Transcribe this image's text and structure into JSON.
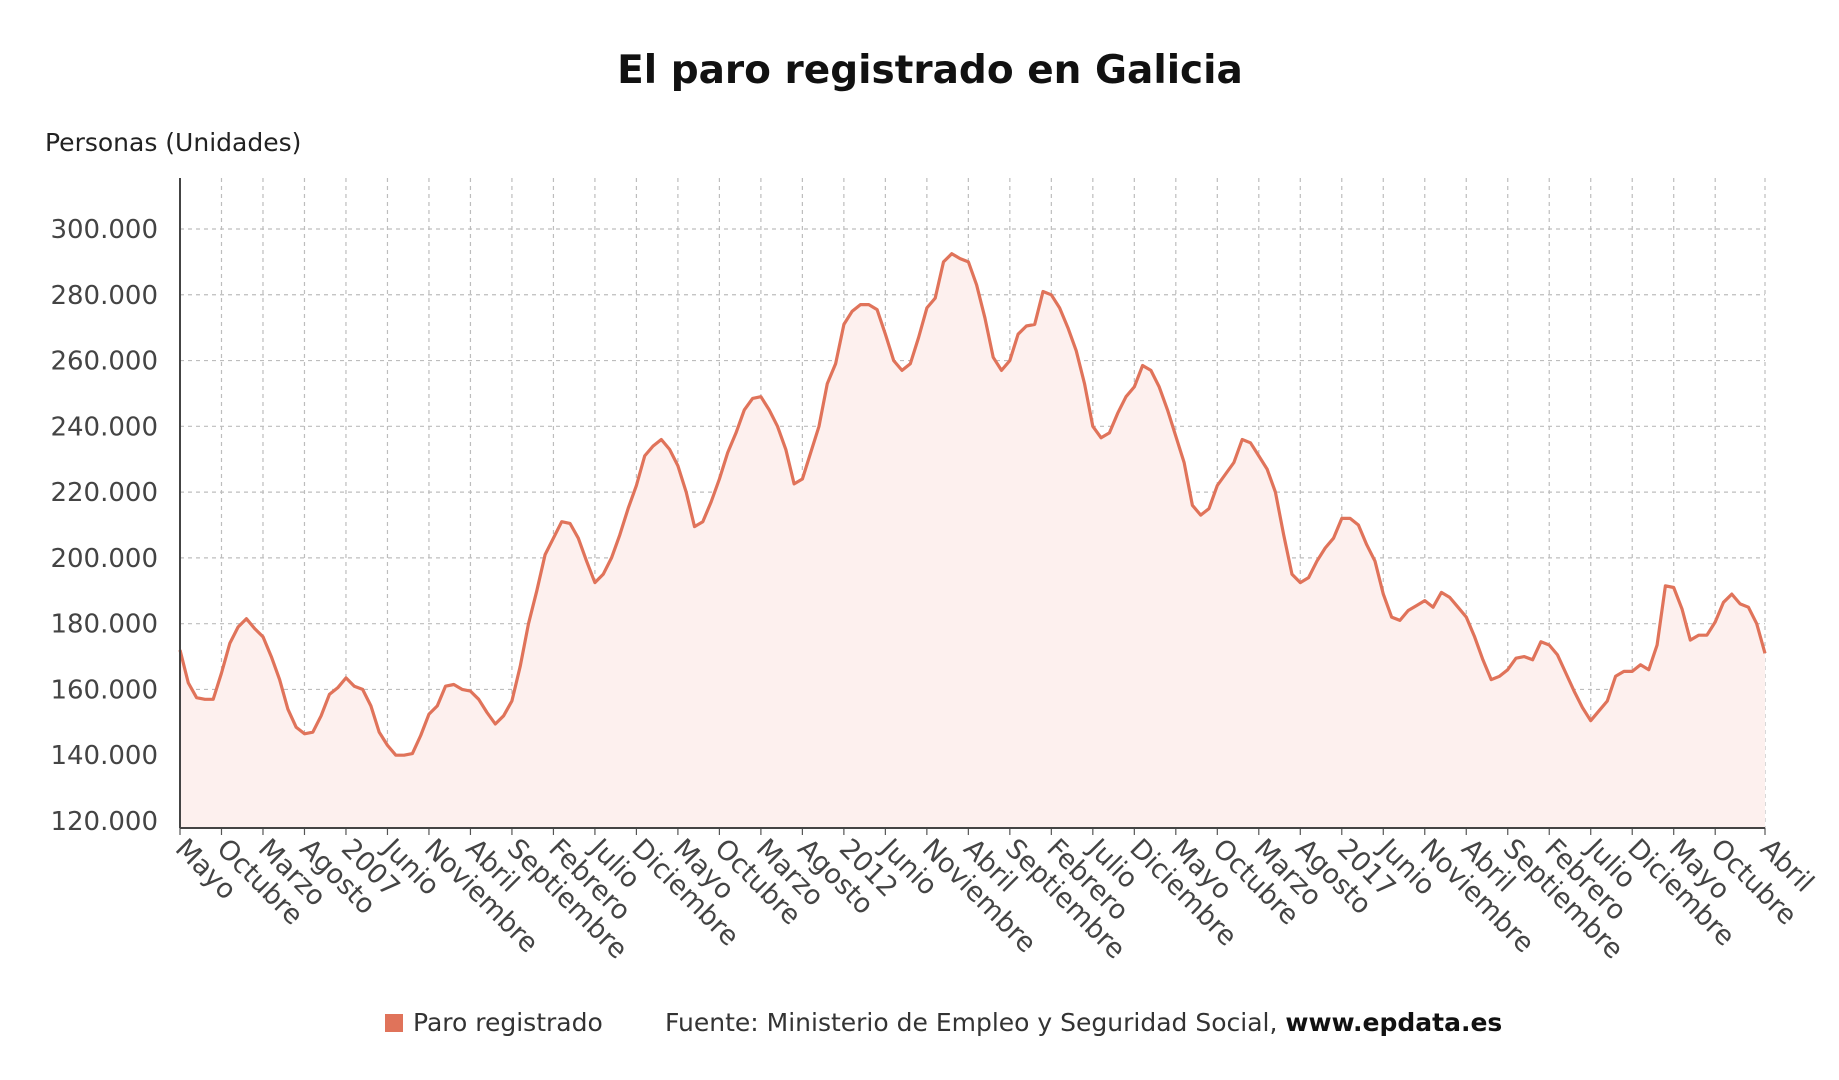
{
  "chart_data": {
    "type": "area",
    "title": "El paro registrado en Galicia",
    "ylabel": "Personas (Unidades)",
    "ylim": [
      120000,
      315000
    ],
    "yticks": [
      120000,
      140000,
      160000,
      180000,
      200000,
      220000,
      240000,
      260000,
      280000,
      300000
    ],
    "ytick_labels": [
      "120.000",
      "140.000",
      "160.000",
      "180.000",
      "200.000",
      "220.000",
      "240.000",
      "260.000",
      "280.000",
      "300.000"
    ],
    "x_start": "2005-05",
    "x_end": "2021-04",
    "x_tick_labels": [
      "Mayo",
      "Octubre",
      "Marzo",
      "Agosto",
      "2007",
      "Junio",
      "Noviembre",
      "Abril",
      "Septiembre",
      "Febrero",
      "Julio",
      "Diciembre",
      "Mayo",
      "Octubre",
      "Marzo",
      "Agosto",
      "2012",
      "Junio",
      "Noviembre",
      "Abril",
      "Septiembre",
      "Febrero",
      "Julio",
      "Diciembre",
      "Mayo",
      "Octubre",
      "Marzo",
      "Agosto",
      "2017",
      "Junio",
      "Noviembre",
      "Abril",
      "Septiembre",
      "Febrero",
      "Julio",
      "Diciembre",
      "Mayo",
      "Octubre",
      "Abril"
    ],
    "grid": true,
    "legend_position": "bottom",
    "series": [
      {
        "name": "Paro registrado",
        "color": "#e0735a",
        "fill": "#fdf0ee",
        "values": [
          172000,
          162000,
          157500,
          157000,
          157000,
          165000,
          174000,
          179000,
          181500,
          178500,
          176000,
          170000,
          163000,
          154000,
          148500,
          146500,
          147000,
          152000,
          158500,
          160500,
          163500,
          161000,
          160000,
          155000,
          147000,
          143000,
          140000,
          140000,
          140500,
          146000,
          152500,
          155000,
          161000,
          161500,
          160000,
          159500,
          157000,
          153000,
          149500,
          152000,
          156500,
          167000,
          180000,
          190000,
          201000,
          206000,
          211000,
          210500,
          206000,
          199000,
          192500,
          195000,
          200000,
          207000,
          215000,
          222000,
          231000,
          234000,
          236000,
          233000,
          228000,
          220000,
          209500,
          211000,
          217000,
          224000,
          232000,
          238000,
          245000,
          248500,
          249000,
          245000,
          240000,
          233000,
          222500,
          224000,
          232000,
          240000,
          253000,
          259000,
          271000,
          275000,
          277000,
          277000,
          275500,
          268000,
          260000,
          257000,
          259000,
          267000,
          276000,
          279000,
          290000,
          292500,
          291000,
          290000,
          283000,
          273000,
          261000,
          257000,
          260000,
          268000,
          270500,
          271000,
          281000,
          280000,
          276000,
          270000,
          263000,
          253000,
          240000,
          236500,
          238000,
          244000,
          249000,
          252000,
          258500,
          257000,
          252000,
          245000,
          237000,
          229000,
          216000,
          213000,
          215000,
          222000,
          225500,
          229000,
          236000,
          235000,
          231000,
          227000,
          220000,
          207000,
          195000,
          192500,
          194000,
          199000,
          203000,
          206000,
          212000,
          212000,
          210000,
          204000,
          199000,
          189000,
          182000,
          181000,
          184000,
          185500,
          187000,
          185000,
          189500,
          188000,
          185000,
          182000,
          176000,
          169000,
          163000,
          164000,
          166000,
          169500,
          170000,
          169000,
          174500,
          173500,
          170500,
          165000,
          159500,
          154500,
          150500,
          153500,
          156500,
          164000,
          165500,
          165500,
          167500,
          166000,
          173500,
          191500,
          191000,
          184500,
          175000,
          176500,
          176500,
          180500,
          186500,
          189000,
          186000,
          185000,
          180000,
          171000
        ]
      }
    ]
  },
  "footer": {
    "legend_label": "Paro registrado",
    "source_text": "Fuente: Ministerio de Empleo y Seguridad Social,",
    "source_site": "www.epdata.es"
  }
}
